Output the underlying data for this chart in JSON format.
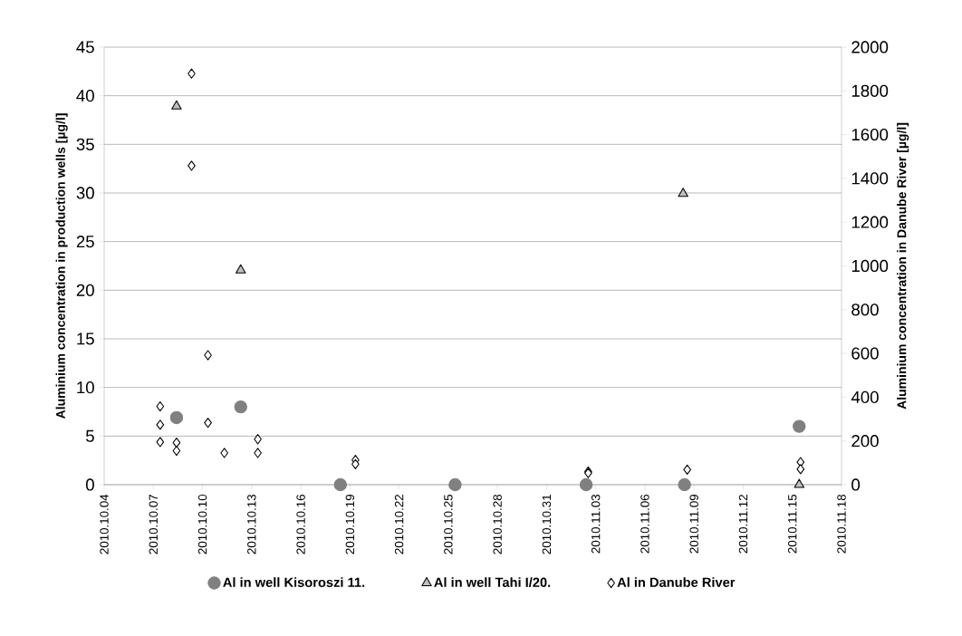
{
  "chart_data": {
    "type": "scatter",
    "ylabel": "Aluminium concentration in production wells [µg/l]",
    "y2label": "Aluminium concentration in Danube River [µg/l]",
    "xlim": [
      "2010-10-04",
      "2010-11-18"
    ],
    "xticks": [
      {
        "value": "2010-10-04",
        "label": "2010.10.04"
      },
      {
        "value": "2010-10-07",
        "label": "2010.10.07"
      },
      {
        "value": "2010-10-10",
        "label": "2010.10.10"
      },
      {
        "value": "2010-10-13",
        "label": "2010.10.13"
      },
      {
        "value": "2010-10-16",
        "label": "2010.10.16"
      },
      {
        "value": "2010-10-19",
        "label": "2010.10.19"
      },
      {
        "value": "2010-10-22",
        "label": "2010.10.22"
      },
      {
        "value": "2010-10-25",
        "label": "2010.10.25"
      },
      {
        "value": "2010-10-28",
        "label": "2010.10.28"
      },
      {
        "value": "2010-10-31",
        "label": "2010.10.31"
      },
      {
        "value": "2010-11-03",
        "label": "2010.11.03"
      },
      {
        "value": "2010-11-06",
        "label": "2010.11.06"
      },
      {
        "value": "2010-11-09",
        "label": "2010.11.09"
      },
      {
        "value": "2010-11-12",
        "label": "2010.11.12"
      },
      {
        "value": "2010-11-15",
        "label": "2010.11.15"
      },
      {
        "value": "2010-11-18",
        "label": "2010.11.18"
      }
    ],
    "ylim": [
      0,
      45
    ],
    "yticks": [
      0,
      5,
      10,
      15,
      20,
      25,
      30,
      35,
      40,
      45
    ],
    "y2lim": [
      0,
      2000
    ],
    "y2ticks": [
      0,
      200,
      400,
      600,
      800,
      1000,
      1200,
      1400,
      1600,
      1800,
      2000
    ],
    "grid": "y",
    "legend": "bottom",
    "series": [
      {
        "name": "Al in well Kisoroszi 11.",
        "color": "#808080",
        "marker": "circle",
        "x": [
          "2010-10-08T10:00",
          "2010-10-12T08:00",
          "2010-10-18T10:00",
          "2010-10-25T10:00",
          "2010-11-02T10:00",
          "2010-11-08T10:00",
          "2010-11-15T10:00"
        ],
        "values": [
          6.9,
          8,
          0,
          0,
          0,
          0,
          6
        ]
      },
      {
        "name": "Al in well Tahi I/20.",
        "color": "#bfbfbf",
        "marker": "triangle",
        "axis": "y2",
        "x": [
          "2010-10-08T10:00",
          "2010-10-12T08:00",
          "2010-11-08T08:00",
          "2010-11-15T10:00"
        ],
        "values": [
          1730,
          980,
          1330,
          0
        ]
      },
      {
        "name": "Al in Danube River",
        "color": "#ffffff",
        "marker": "diamond",
        "axis": "y2",
        "x": [
          "2010-10-07T10:00",
          "2010-10-07T10:00",
          "2010-10-07T10:00",
          "2010-10-08T10:00",
          "2010-10-08T10:00",
          "2010-10-09T08:00",
          "2010-10-09T08:00",
          "2010-10-10T08:00",
          "2010-10-10T08:00",
          "2010-10-11T08:00",
          "2010-10-13T09:00",
          "2010-10-13T09:00",
          "2010-10-19T08:00",
          "2010-10-19T08:00",
          "2010-11-02T13:00",
          "2010-11-02T13:00",
          "2010-11-08T14:00",
          "2010-11-15T12:00",
          "2010-11-15T12:00"
        ],
        "values": [
          358,
          274,
          195,
          192,
          155,
          1879,
          1458,
          592,
          283,
          145,
          208,
          145,
          113,
          94,
          60,
          53,
          69,
          103,
          71
        ]
      }
    ]
  }
}
